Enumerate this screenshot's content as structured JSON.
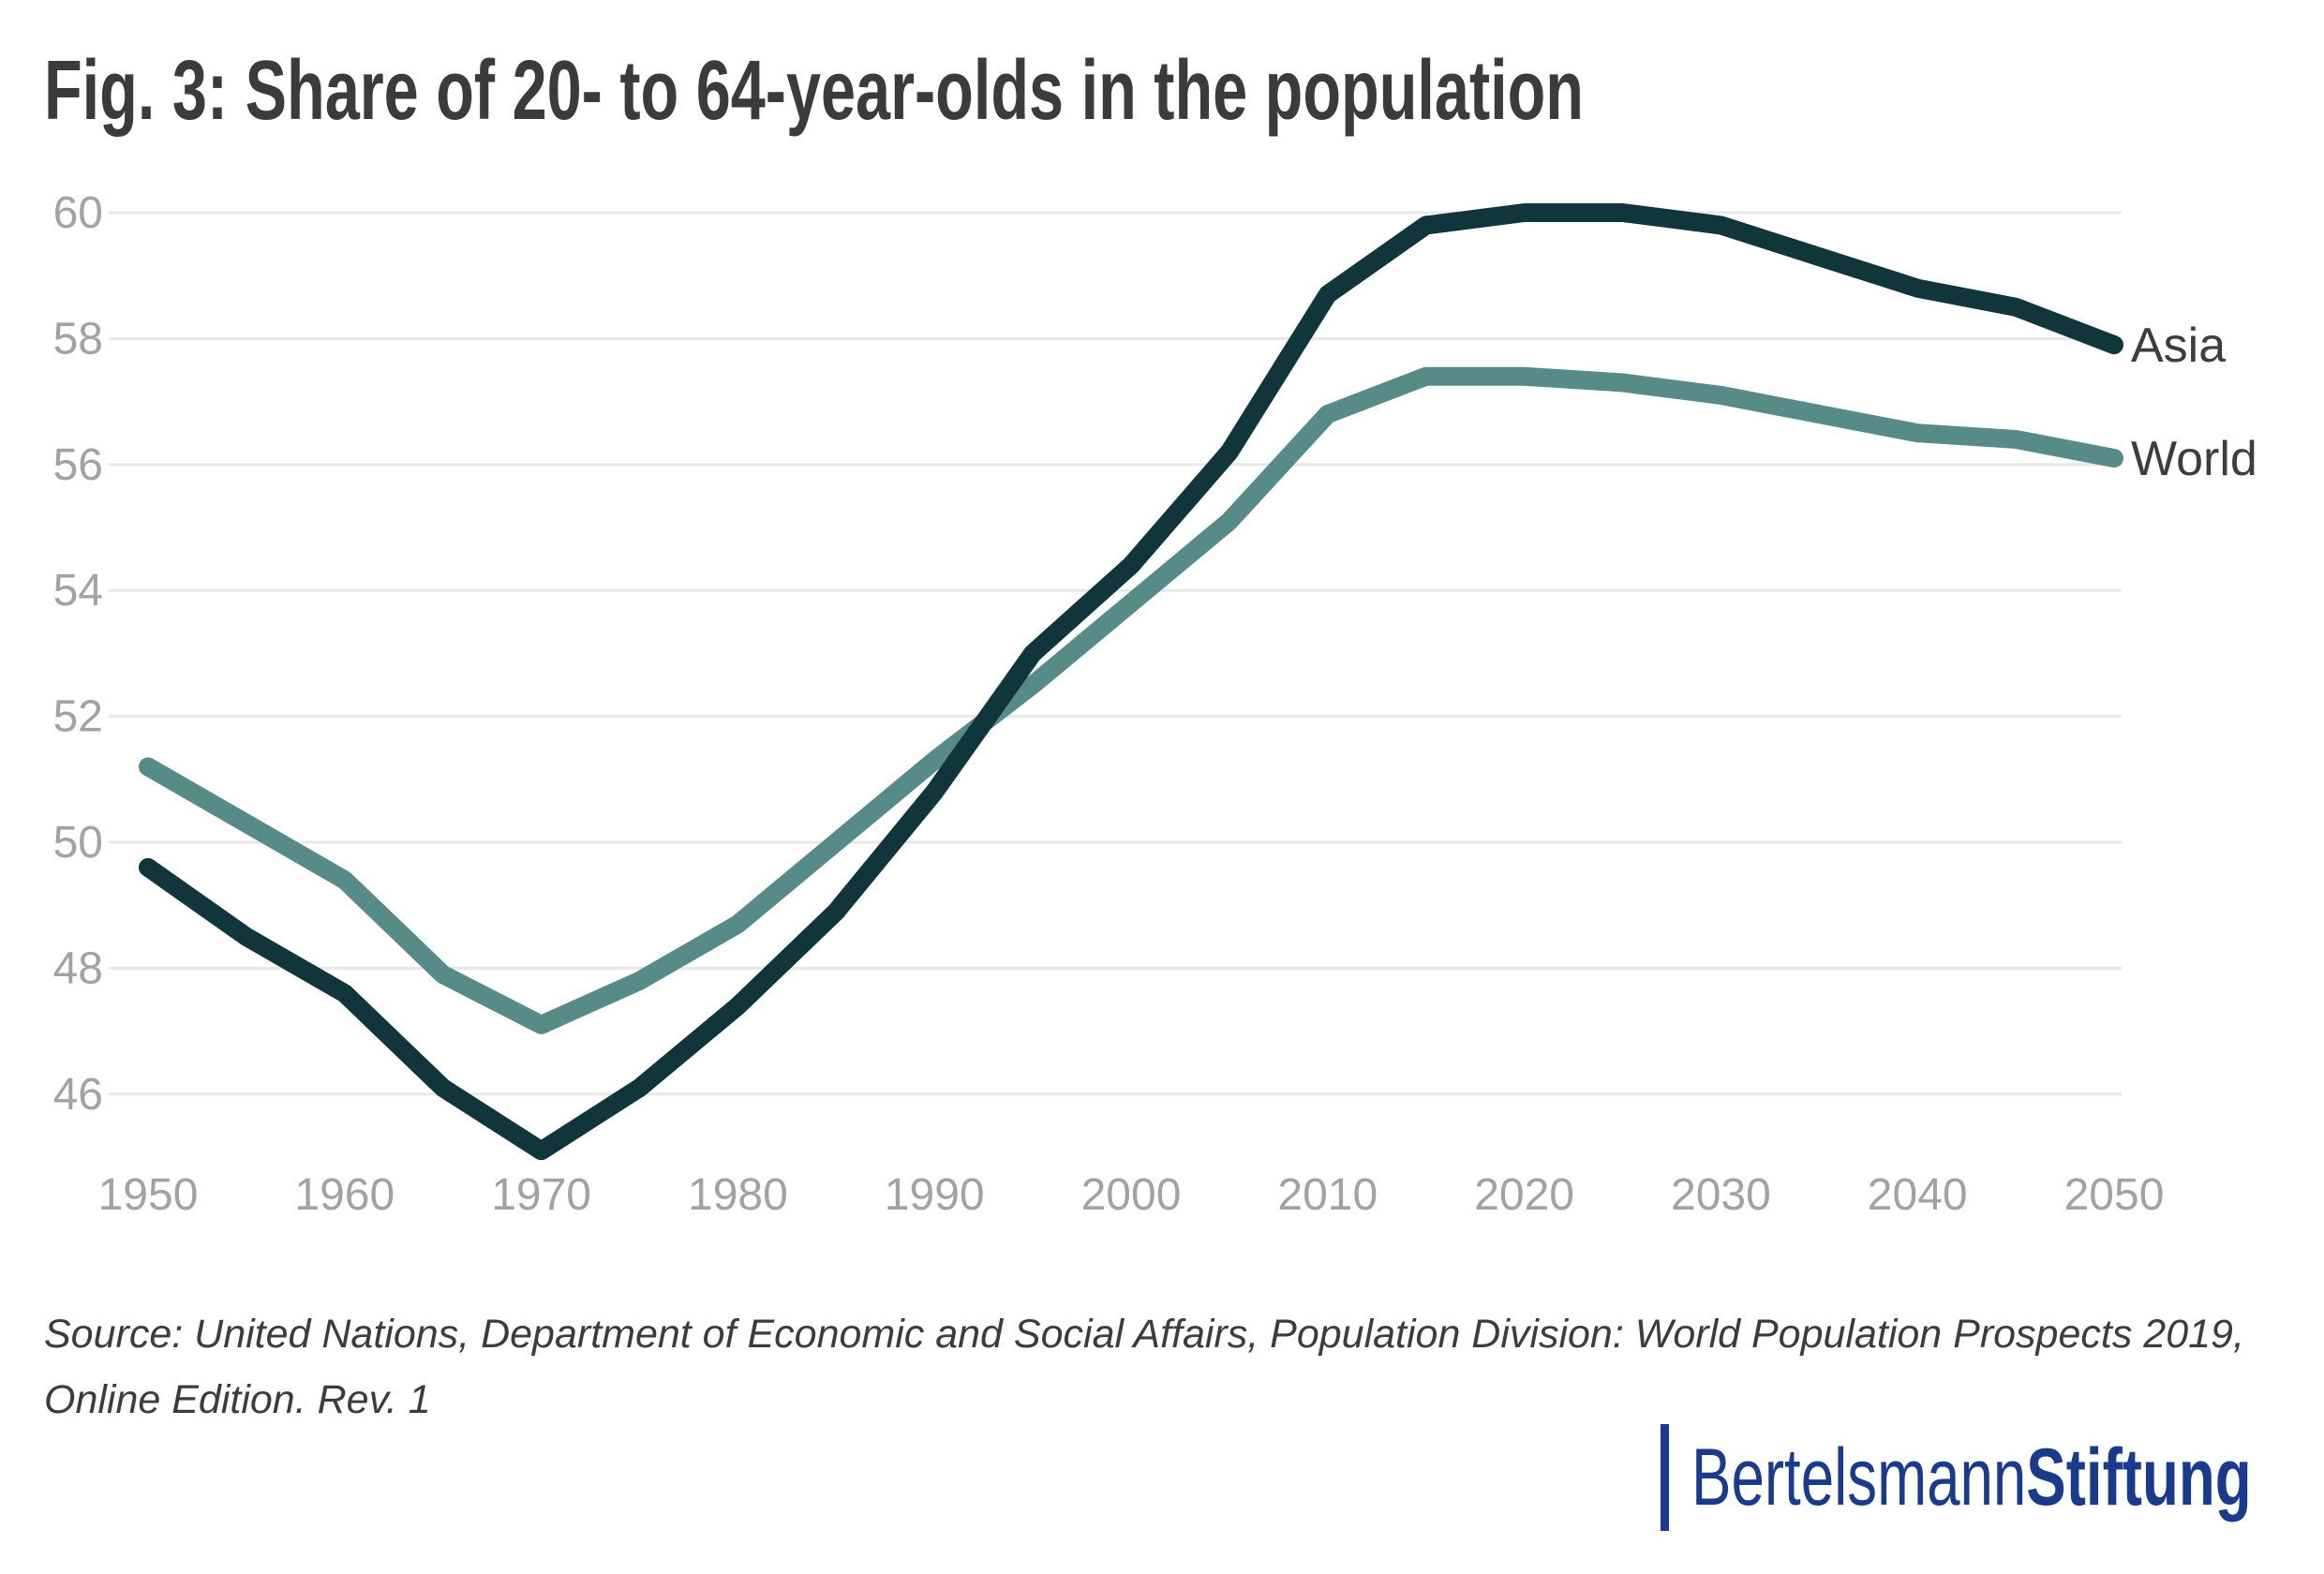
{
  "title": "Fig. 3: Share of 20- to 64-year-olds in the population",
  "chart_data": {
    "type": "line",
    "title": "Fig. 3: Share of 20- to 64-year-olds in the population",
    "x": [
      1950,
      1955,
      1960,
      1965,
      1970,
      1975,
      1980,
      1985,
      1990,
      1995,
      2000,
      2005,
      2010,
      2015,
      2020,
      2025,
      2030,
      2035,
      2040,
      2045,
      2050
    ],
    "series": [
      {
        "name": "World",
        "color": "#578b88",
        "values": [
          51.2,
          50.3,
          49.4,
          47.9,
          47.1,
          47.8,
          48.7,
          50.0,
          51.3,
          52.5,
          53.8,
          55.1,
          56.8,
          57.4,
          57.4,
          57.3,
          57.1,
          56.8,
          56.5,
          56.4,
          56.1
        ]
      },
      {
        "name": "Asia",
        "color": "#10363c",
        "values": [
          49.6,
          48.5,
          47.6,
          46.1,
          45.1,
          46.1,
          47.4,
          48.9,
          50.8,
          53.0,
          54.4,
          56.2,
          58.7,
          59.8,
          60.0,
          60.0,
          59.8,
          59.3,
          58.8,
          58.5,
          57.9
        ]
      }
    ],
    "xticks": [
      1950,
      1960,
      1970,
      1980,
      1990,
      2000,
      2010,
      2020,
      2030,
      2040,
      2050
    ],
    "yticks": [
      46,
      48,
      50,
      52,
      54,
      56,
      58,
      60
    ],
    "xlabel": "",
    "ylabel": "",
    "xlim": [
      1950,
      2050
    ],
    "ylim": [
      45,
      60.5
    ],
    "grid": "horizontal",
    "legend_position": "line-end-labels-right",
    "end_labels": {
      "Asia": "Asia",
      "World": "World"
    }
  },
  "axis_style": {
    "tick_color": "#a2a2a2",
    "grid_color": "#e8e8e8",
    "series_label_color": "#3d3d3d"
  },
  "source": {
    "line1": "Source: United Nations, Department of Economic and Social Affairs, Population Division: World Population Prospects 2019,",
    "line2": "Online Edition. Rev. 1"
  },
  "logo": {
    "brand": "Bertelsmann",
    "suffix": "Stiftung",
    "color": "#1a3a8c"
  }
}
